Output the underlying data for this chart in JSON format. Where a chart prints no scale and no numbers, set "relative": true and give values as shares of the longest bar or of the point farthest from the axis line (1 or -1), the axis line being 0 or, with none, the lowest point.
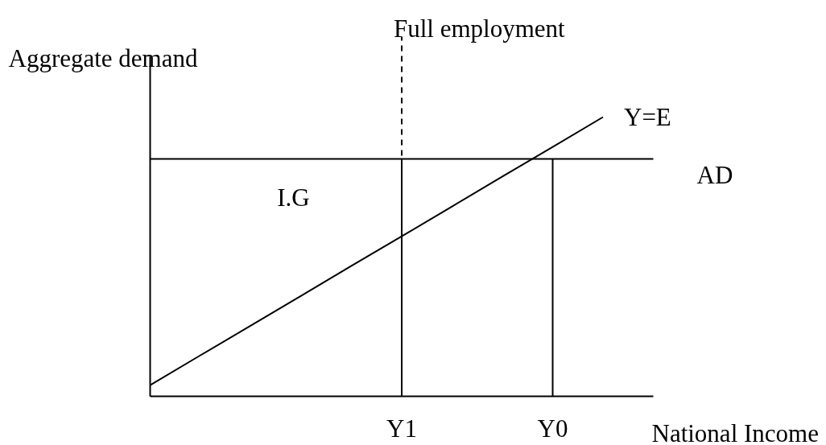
{
  "chart_data": {
    "type": "line",
    "relative": true,
    "xlabel": "National Income",
    "ylabel": "Aggregate demand",
    "grid": false,
    "categories": [
      null,
      null,
      null,
      null,
      null,
      "Y1",
      null,
      null,
      "Y0",
      null,
      null
    ],
    "series": [
      {
        "name": "Y=E",
        "color": "#000000",
        "values": [
          0.04,
          0.147,
          0.253,
          0.36,
          0.467,
          0.573,
          0.68,
          0.787,
          0.893,
          1,
          null
        ]
      },
      {
        "name": "AD",
        "color": "#000000",
        "values": [
          0.85,
          0.85,
          0.85,
          0.85,
          0.85,
          0.85,
          0.85,
          0.85,
          0.85,
          0.85,
          0.85
        ]
      },
      {
        "color": "#000000",
        "x": [
          "Y1",
          "Y1"
        ],
        "values": [
          0,
          0.85
        ]
      },
      {
        "color": "#000000",
        "x": [
          "Y0",
          "Y0"
        ],
        "values": [
          0,
          0.85
        ]
      }
    ],
    "ref_lines": [
      {
        "axis": "x",
        "value": "Y1",
        "label": "Full employment",
        "line_style": "dashed",
        "color": "#000000"
      }
    ],
    "annotations": [
      "I.G"
    ]
  }
}
